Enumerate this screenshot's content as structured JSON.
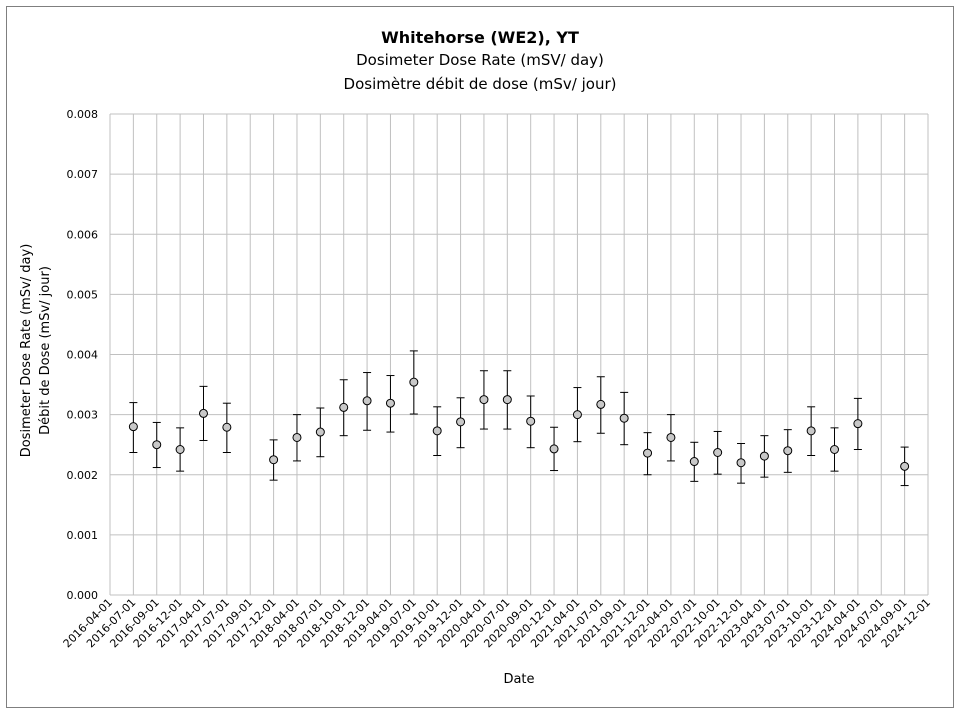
{
  "chart_data": {
    "type": "scatter",
    "title": "Whitehorse (WE2), YT",
    "subtitle_en": "Dosimeter Dose Rate (mSV/ day)",
    "subtitle_fr": "Dosimètre débit de dose (mSv/ jour)",
    "xlabel": "Date",
    "ylabel_en": "Dosimeter Dose Rate (mSv/ day)",
    "ylabel_fr": "Débit de Dose (mSv/ jour)",
    "ylim": [
      0,
      0.008
    ],
    "yticks": [
      "0.000",
      "0.001",
      "0.002",
      "0.003",
      "0.004",
      "0.005",
      "0.006",
      "0.007",
      "0.008"
    ],
    "xticks": [
      "2016-04-01",
      "2016-07-01",
      "2016-09-01",
      "2016-12-01",
      "2017-04-01",
      "2017-07-01",
      "2017-09-01",
      "2017-12-01",
      "2018-04-01",
      "2018-07-01",
      "2018-10-01",
      "2018-12-01",
      "2019-04-01",
      "2019-07-01",
      "2019-10-01",
      "2019-12-01",
      "2020-04-01",
      "2020-07-01",
      "2020-09-01",
      "2020-12-01",
      "2021-04-01",
      "2021-07-01",
      "2021-09-01",
      "2021-12-01",
      "2022-04-01",
      "2022-07-01",
      "2022-10-01",
      "2022-12-01",
      "2023-04-01",
      "2023-07-01",
      "2023-10-01",
      "2023-12-01",
      "2024-04-01",
      "2024-07-01",
      "2024-09-01",
      "2024-12-01"
    ],
    "grid": true,
    "points": [
      {
        "x": "2016-07-01",
        "y": 0.0028,
        "lo": 0.00237,
        "hi": 0.0032
      },
      {
        "x": "2016-09-01",
        "y": 0.0025,
        "lo": 0.00212,
        "hi": 0.00287
      },
      {
        "x": "2016-12-01",
        "y": 0.00242,
        "lo": 0.00206,
        "hi": 0.00278
      },
      {
        "x": "2017-04-01",
        "y": 0.00302,
        "lo": 0.00257,
        "hi": 0.00347
      },
      {
        "x": "2017-07-01",
        "y": 0.00279,
        "lo": 0.00237,
        "hi": 0.00319
      },
      {
        "x": "2017-12-01",
        "y": 0.00225,
        "lo": 0.00191,
        "hi": 0.00258
      },
      {
        "x": "2018-04-01",
        "y": 0.00262,
        "lo": 0.00223,
        "hi": 0.003
      },
      {
        "x": "2018-07-01",
        "y": 0.00271,
        "lo": 0.0023,
        "hi": 0.00311
      },
      {
        "x": "2018-10-01",
        "y": 0.00312,
        "lo": 0.00265,
        "hi": 0.00358
      },
      {
        "x": "2018-12-01",
        "y": 0.00323,
        "lo": 0.00274,
        "hi": 0.0037
      },
      {
        "x": "2019-04-01",
        "y": 0.00319,
        "lo": 0.00271,
        "hi": 0.00365
      },
      {
        "x": "2019-07-01",
        "y": 0.00354,
        "lo": 0.00301,
        "hi": 0.00406
      },
      {
        "x": "2019-10-01",
        "y": 0.00273,
        "lo": 0.00232,
        "hi": 0.00313
      },
      {
        "x": "2019-12-01",
        "y": 0.00288,
        "lo": 0.00245,
        "hi": 0.00328
      },
      {
        "x": "2020-04-01",
        "y": 0.00325,
        "lo": 0.00276,
        "hi": 0.00373
      },
      {
        "x": "2020-07-01",
        "y": 0.00325,
        "lo": 0.00276,
        "hi": 0.00373
      },
      {
        "x": "2020-09-01",
        "y": 0.00289,
        "lo": 0.00245,
        "hi": 0.00331
      },
      {
        "x": "2020-12-01",
        "y": 0.00243,
        "lo": 0.00207,
        "hi": 0.00279
      },
      {
        "x": "2021-04-01",
        "y": 0.003,
        "lo": 0.00255,
        "hi": 0.00345
      },
      {
        "x": "2021-07-01",
        "y": 0.00317,
        "lo": 0.00269,
        "hi": 0.00363
      },
      {
        "x": "2021-09-01",
        "y": 0.00294,
        "lo": 0.0025,
        "hi": 0.00337
      },
      {
        "x": "2021-12-01",
        "y": 0.00236,
        "lo": 0.002,
        "hi": 0.0027
      },
      {
        "x": "2022-04-01",
        "y": 0.00262,
        "lo": 0.00223,
        "hi": 0.003
      },
      {
        "x": "2022-07-01",
        "y": 0.00222,
        "lo": 0.00189,
        "hi": 0.00254
      },
      {
        "x": "2022-10-01",
        "y": 0.00237,
        "lo": 0.00201,
        "hi": 0.00272
      },
      {
        "x": "2022-12-01",
        "y": 0.0022,
        "lo": 0.00186,
        "hi": 0.00252
      },
      {
        "x": "2023-04-01",
        "y": 0.00231,
        "lo": 0.00196,
        "hi": 0.00265
      },
      {
        "x": "2023-07-01",
        "y": 0.0024,
        "lo": 0.00204,
        "hi": 0.00275
      },
      {
        "x": "2023-10-01",
        "y": 0.00273,
        "lo": 0.00232,
        "hi": 0.00313
      },
      {
        "x": "2023-12-01",
        "y": 0.00242,
        "lo": 0.00206,
        "hi": 0.00278
      },
      {
        "x": "2024-04-01",
        "y": 0.00285,
        "lo": 0.00242,
        "hi": 0.00327
      },
      {
        "x": "2024-09-01",
        "y": 0.00214,
        "lo": 0.00182,
        "hi": 0.00246
      }
    ],
    "colors": {
      "marker_fill": "#c8c8c8",
      "marker_stroke": "#000000",
      "gridline": "#c0c0c0",
      "frame": "#7f7f7f"
    }
  }
}
